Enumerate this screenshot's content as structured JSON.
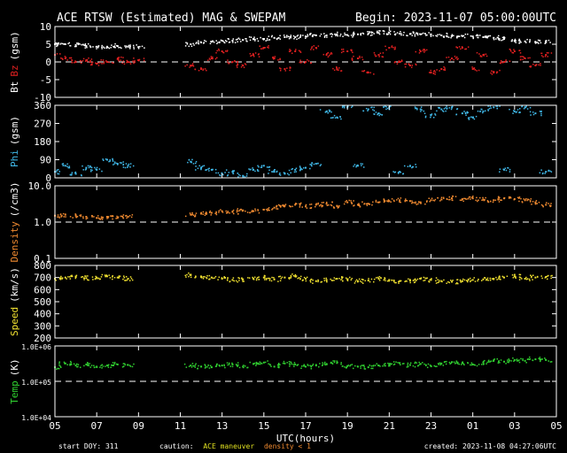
{
  "header": {
    "title": "ACE RTSW (Estimated) MAG & SWEPAM",
    "begin": "Begin: 2023-11-07 05:00:00UTC"
  },
  "footer": {
    "start_doy": "start DOY: 311",
    "caution_label": "caution:",
    "maneuver": "ACE maneuver",
    "density_note": "density < 1",
    "created": "created: 2023-11-08 04:27:06UTC"
  },
  "colors": {
    "background": "#000000",
    "bt": "#ffffff",
    "bz": "#e02020",
    "phi": "#40b8e8",
    "density": "#f08a30",
    "speed": "#f0e030",
    "temp": "#30d030",
    "maneuver": "#e0e020",
    "density_note": "#f08a30"
  },
  "chart_data": [
    {
      "type": "scatter",
      "panel": "mag",
      "ylabel_parts": [
        {
          "text": "Bt",
          "color": "#ffffff"
        },
        {
          "text": "Bz",
          "color": "#e02020"
        },
        {
          "text": "(gsm)",
          "color": "#ffffff"
        }
      ],
      "ylim": [
        -10,
        10
      ],
      "yticks": [
        "10",
        "5",
        "0",
        "-5",
        "-10"
      ],
      "ytick_values": [
        10,
        5,
        0,
        -5,
        -10
      ],
      "reference_line": 0,
      "series": [
        {
          "name": "Bt",
          "color": "#ffffff",
          "x": [
            0,
            0.5,
            1,
            1.5,
            2,
            2.5,
            3,
            3.5,
            4,
            6.5,
            7,
            7.5,
            8,
            8.5,
            9,
            9.5,
            10,
            10.5,
            11,
            11.5,
            12,
            12.5,
            13,
            13.5,
            14,
            14.5,
            15,
            15.5,
            16,
            16.5,
            17,
            17.5,
            18,
            18.5,
            19,
            19.5,
            20,
            20.5,
            21,
            21.5,
            22,
            22.5,
            23,
            23.5
          ],
          "values": [
            5,
            5,
            4.8,
            4.5,
            4.3,
            4.3,
            4.5,
            4.3,
            4.2,
            5,
            5.5,
            5.7,
            6,
            6,
            6.2,
            6.5,
            6.5,
            6.8,
            7,
            7,
            7.2,
            7.5,
            7.5,
            7.8,
            7.6,
            7.8,
            8,
            8.2,
            8.3,
            8,
            7.9,
            7.8,
            7.8,
            7.5,
            7.3,
            7.3,
            7.2,
            7,
            6.8,
            6.5,
            6,
            5.8,
            5.7,
            5.5
          ]
        },
        {
          "name": "Bz",
          "color": "#e02020",
          "x": [
            0,
            0.5,
            1,
            1.5,
            2,
            2.5,
            3,
            3.5,
            4,
            6.5,
            7,
            7.5,
            8,
            8.5,
            9,
            9.5,
            10,
            10.5,
            11,
            11.5,
            12,
            12.5,
            13,
            13.5,
            14,
            14.5,
            15,
            15.5,
            16,
            16.5,
            17,
            17.5,
            18,
            18.5,
            19,
            19.5,
            20,
            20.5,
            21,
            21.5,
            22,
            22.5,
            23,
            23.5
          ],
          "values": [
            2,
            1,
            0,
            0.5,
            -0.5,
            0,
            0.8,
            0,
            0.5,
            -1,
            -2,
            1,
            3,
            0,
            -1,
            2,
            4,
            1,
            -2,
            3,
            0,
            4,
            2,
            -2,
            3,
            1,
            -3,
            2,
            4,
            0,
            -1,
            3,
            -3,
            -2,
            1,
            4,
            -2,
            2,
            -3,
            0,
            3,
            1,
            -1,
            2
          ]
        }
      ]
    },
    {
      "type": "scatter",
      "panel": "phi",
      "ylabel_parts": [
        {
          "text": "Phi",
          "color": "#40b8e8"
        },
        {
          "text": "(gsm)",
          "color": "#ffffff"
        }
      ],
      "ylim": [
        0,
        360
      ],
      "yticks": [
        "360",
        "270",
        "180",
        "90",
        "0"
      ],
      "ytick_values": [
        360,
        270,
        180,
        90,
        0
      ],
      "series": [
        {
          "name": "Phi",
          "color": "#40b8e8",
          "x": [
            0,
            0.5,
            1,
            1.5,
            2,
            2.5,
            3,
            3.5,
            6.5,
            7,
            7.5,
            8,
            8.5,
            9,
            9.5,
            10,
            10.5,
            11,
            11.5,
            12,
            12.5,
            13,
            13.5,
            14,
            14.5,
            15,
            15.5,
            16,
            16.5,
            17,
            17.5,
            18,
            18.5,
            19,
            19.5,
            20,
            20.5,
            21,
            21.5,
            22,
            22.5,
            23,
            23.5
          ],
          "values": [
            30,
            60,
            20,
            50,
            40,
            90,
            70,
            60,
            80,
            50,
            40,
            20,
            30,
            10,
            40,
            60,
            30,
            20,
            40,
            50,
            70,
            330,
            300,
            350,
            60,
            340,
            320,
            350,
            30,
            60,
            340,
            310,
            340,
            350,
            320,
            300,
            330,
            350,
            40,
            330,
            350,
            320,
            30
          ]
        }
      ]
    },
    {
      "type": "scatter",
      "panel": "density",
      "ylabel_parts": [
        {
          "text": "Density",
          "color": "#f08a30"
        },
        {
          "text": "(/cm3)",
          "color": "#ffffff"
        }
      ],
      "scale": "log",
      "ylim": [
        0.1,
        10
      ],
      "yticks": [
        "10.0",
        "1.0",
        "0.1"
      ],
      "ytick_values": [
        10,
        1,
        0.1
      ],
      "reference_line": 1,
      "series": [
        {
          "name": "Density",
          "color": "#f08a30",
          "x": [
            0,
            0.5,
            1,
            1.5,
            2,
            2.5,
            3,
            3.5,
            6.5,
            7,
            7.5,
            8,
            8.5,
            9,
            9.5,
            10,
            10.5,
            11,
            11.5,
            12,
            12.5,
            13,
            13.5,
            14,
            14.5,
            15,
            15.5,
            16,
            16.5,
            17,
            17.5,
            18,
            18.5,
            19,
            19.5,
            20,
            20.5,
            21,
            21.5,
            22,
            22.5,
            23,
            23.5
          ],
          "values": [
            1.5,
            1.6,
            1.5,
            1.4,
            1.3,
            1.4,
            1.3,
            1.4,
            1.6,
            1.7,
            1.8,
            2,
            1.9,
            2.1,
            2,
            2.2,
            2.5,
            2.8,
            3,
            2.7,
            3,
            3.2,
            2.8,
            3.5,
            3,
            3.2,
            3.5,
            3.8,
            4,
            3.8,
            3.5,
            4,
            4.2,
            4.5,
            4.3,
            4.5,
            4.2,
            4,
            4.5,
            4.3,
            4,
            3.5,
            3
          ]
        }
      ]
    },
    {
      "type": "scatter",
      "panel": "speed",
      "ylabel_parts": [
        {
          "text": "Speed",
          "color": "#f0e030"
        },
        {
          "text": "(km/s)",
          "color": "#ffffff"
        }
      ],
      "ylim": [
        200,
        800
      ],
      "yticks": [
        "800",
        "700",
        "600",
        "500",
        "400",
        "300",
        "200"
      ],
      "ytick_values": [
        800,
        700,
        600,
        500,
        400,
        300,
        200
      ],
      "series": [
        {
          "name": "Speed",
          "color": "#f0e030",
          "x": [
            0,
            0.5,
            1,
            1.5,
            2,
            2.5,
            3,
            3.5,
            6.5,
            7,
            7.5,
            8,
            8.5,
            9,
            9.5,
            10,
            10.5,
            11,
            11.5,
            12,
            12.5,
            13,
            13.5,
            14,
            14.5,
            15,
            15.5,
            16,
            16.5,
            17,
            17.5,
            18,
            18.5,
            19,
            19.5,
            20,
            20.5,
            21,
            21.5,
            22,
            22.5,
            23,
            23.5
          ],
          "values": [
            690,
            700,
            705,
            695,
            700,
            710,
            700,
            690,
            720,
            705,
            700,
            690,
            680,
            685,
            690,
            700,
            685,
            700,
            710,
            690,
            670,
            680,
            690,
            685,
            670,
            675,
            690,
            680,
            670,
            675,
            690,
            680,
            670,
            665,
            670,
            680,
            685,
            690,
            700,
            710,
            690,
            700,
            705
          ]
        }
      ]
    },
    {
      "type": "scatter",
      "panel": "temp",
      "ylabel_parts": [
        {
          "text": "Temp",
          "color": "#30d030"
        },
        {
          "text": "(K)",
          "color": "#ffffff"
        }
      ],
      "scale": "log",
      "ylim": [
        10000,
        1000000
      ],
      "yticks": [
        "1.0E+06",
        "1.0E+05",
        "1.0E+04"
      ],
      "ytick_values": [
        1000000,
        100000,
        10000
      ],
      "reference_line": 100000,
      "series": [
        {
          "name": "Temp",
          "color": "#30d030",
          "x": [
            0,
            0.5,
            1,
            1.5,
            2,
            2.5,
            3,
            3.5,
            6.5,
            7,
            7.5,
            8,
            8.5,
            9,
            9.5,
            10,
            10.5,
            11,
            11.5,
            12,
            12.5,
            13,
            13.5,
            14,
            14.5,
            15,
            15.5,
            16,
            16.5,
            17,
            17.5,
            18,
            18.5,
            19,
            19.5,
            20,
            20.5,
            21,
            21.5,
            22,
            22.5,
            23,
            23.5
          ],
          "values": [
            250000,
            320000,
            280000,
            300000,
            260000,
            280000,
            300000,
            290000,
            280000,
            260000,
            250000,
            280000,
            300000,
            260000,
            310000,
            340000,
            260000,
            320000,
            300000,
            260000,
            280000,
            310000,
            330000,
            270000,
            260000,
            250000,
            280000,
            300000,
            330000,
            290000,
            310000,
            270000,
            320000,
            350000,
            330000,
            300000,
            340000,
            380000,
            360000,
            400000,
            380000,
            420000,
            400000
          ]
        }
      ]
    }
  ],
  "xaxis": {
    "label": "UTC(hours)",
    "tick_labels": [
      "05",
      "07",
      "09",
      "11",
      "13",
      "15",
      "17",
      "19",
      "21",
      "23",
      "01",
      "03",
      "05"
    ],
    "tick_hours": [
      0,
      2,
      4,
      6,
      8,
      10,
      12,
      14,
      16,
      18,
      20,
      22,
      24
    ],
    "range": [
      0,
      24
    ]
  }
}
